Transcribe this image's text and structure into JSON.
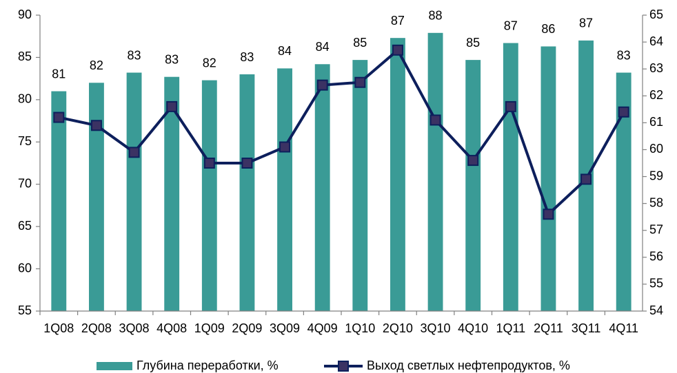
{
  "chart_data": {
    "type": "bar_line",
    "categories": [
      "1Q08",
      "2Q08",
      "3Q08",
      "4Q08",
      "1Q09",
      "2Q09",
      "3Q09",
      "4Q09",
      "1Q10",
      "2Q10",
      "3Q10",
      "4Q10",
      "1Q11",
      "2Q11",
      "3Q11",
      "4Q11"
    ],
    "series": [
      {
        "name": "Глубина переработки, %",
        "color": "#3a9b96",
        "type": "bar",
        "values": [
          81.0,
          82.0,
          83.2,
          82.7,
          82.3,
          83.0,
          83.7,
          84.2,
          84.7,
          87.3,
          87.9,
          84.7,
          86.7,
          86.3,
          87.0,
          83.2
        ],
        "value_labels": [
          "81",
          "82",
          "83",
          "83",
          "82",
          "83",
          "84",
          "84",
          "85",
          "87",
          "88",
          "85",
          "87",
          "86",
          "87",
          "83"
        ]
      },
      {
        "name": "Выход светлых нефтепродуктов, %",
        "color": "#0d1f5c",
        "marker_color": "#3b3263",
        "type": "line",
        "axis": "y2",
        "values": [
          61.2,
          60.9,
          59.9,
          61.6,
          59.5,
          59.5,
          60.1,
          62.4,
          62.5,
          63.7,
          61.1,
          59.6,
          61.6,
          57.6,
          58.9,
          61.4
        ]
      }
    ],
    "ylim": [
      55,
      90
    ],
    "yticks": [
      55,
      60,
      65,
      70,
      75,
      80,
      85,
      90
    ],
    "y2lim": [
      54,
      65
    ],
    "y2ticks": [
      54,
      55,
      56,
      57,
      58,
      59,
      60,
      61,
      62,
      63,
      64,
      65
    ],
    "legend": "bottom"
  }
}
